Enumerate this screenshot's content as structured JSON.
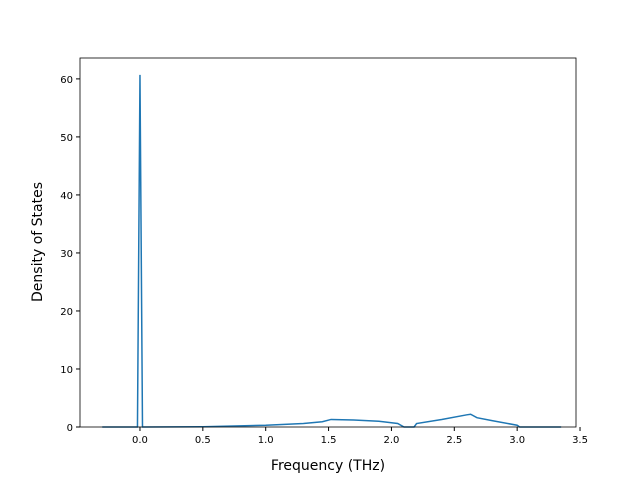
{
  "chart_data": {
    "type": "line",
    "xlabel": "Frequency (THz)",
    "ylabel": "Density of States",
    "x": [
      -0.3,
      -0.02,
      0.0,
      0.02,
      0.5,
      1.0,
      1.3,
      1.45,
      1.52,
      1.7,
      1.9,
      2.05,
      2.1,
      2.18,
      2.2,
      2.4,
      2.6,
      2.63,
      2.68,
      2.8,
      3.0,
      3.02,
      3.35
    ],
    "series": [
      {
        "color": "#1f77b4",
        "values": [
          0,
          0,
          60.7,
          0,
          0.05,
          0.3,
          0.6,
          0.9,
          1.3,
          1.2,
          1.0,
          0.6,
          0,
          0,
          0.6,
          1.3,
          2.1,
          2.2,
          1.6,
          1.1,
          0.3,
          0,
          0
        ]
      }
    ],
    "xlim": [
      -0.477,
      3.468
    ],
    "ylim": [
      0,
      63.6
    ],
    "xticks": [
      {
        "value": 0,
        "label": "0.0"
      },
      0.5,
      {
        "value": 1,
        "label": "1.0"
      },
      1.5,
      {
        "value": 2,
        "label": "2.0"
      },
      2.5,
      {
        "value": 3,
        "label": "3.0"
      },
      3.5
    ],
    "yticks": [
      0,
      10,
      20,
      30,
      40,
      50,
      60
    ]
  }
}
